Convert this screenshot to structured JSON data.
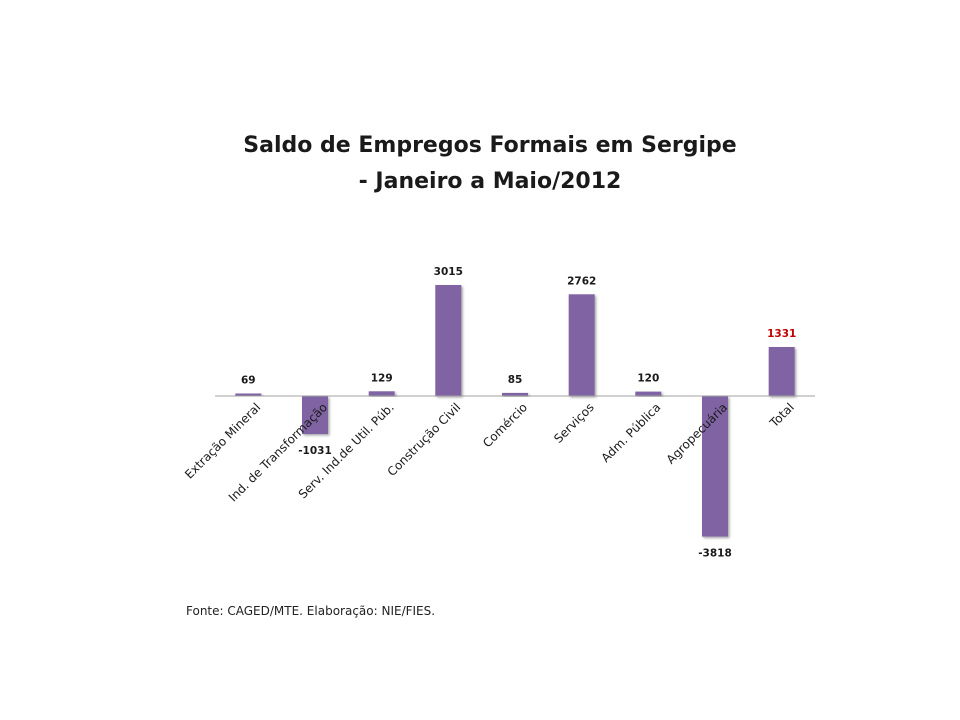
{
  "chart_data": {
    "type": "bar",
    "title": [
      "Saldo de Empregos Formais em Sergipe",
      "- Janeiro a Maio/2012"
    ],
    "categories": [
      "Extração Mineral",
      "Ind. de Transformação",
      "Serv. Ind.de Util. Púb.",
      "Construção Civil",
      "Comércio",
      "Serviços",
      "Adm. Pública",
      "Agropecuária",
      "Total"
    ],
    "values": [
      69,
      -1031,
      129,
      3015,
      85,
      2762,
      120,
      -3818,
      1331
    ],
    "data_labels": [
      "69",
      "-1031",
      "129",
      "3015",
      "85",
      "2762",
      "120",
      "-3818",
      "1331"
    ],
    "xlabel": "",
    "ylabel": "",
    "ylim": [
      -4000,
      4000
    ],
    "grid": false,
    "legend": "none",
    "colors": {
      "bar": "#8064a2",
      "label": "#1a1a1a",
      "total_label": "#c00000",
      "axis": "#a0a0a0"
    }
  },
  "footer": {
    "source": "Fonte: CAGED/MTE. Elaboração: NIE/FIES."
  }
}
